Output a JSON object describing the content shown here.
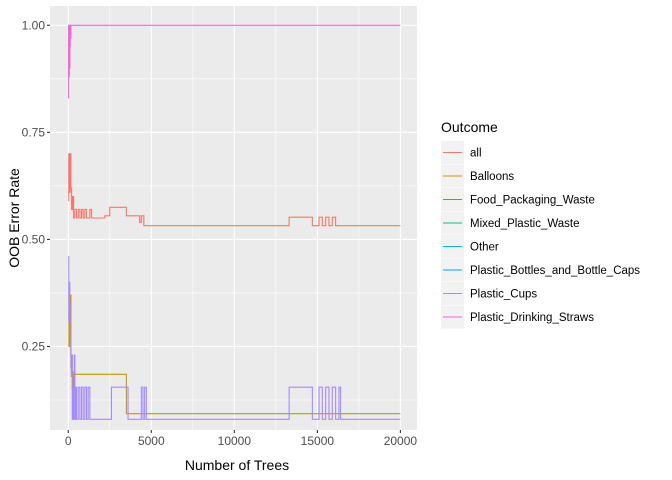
{
  "chart_data": {
    "type": "line",
    "xlabel": "Number of Trees",
    "ylabel": "OOB Error Rate",
    "xlim": [
      -1100,
      21000
    ],
    "ylim": [
      0.055,
      1.045
    ],
    "x_ticks": [
      0,
      5000,
      10000,
      15000,
      20000
    ],
    "x_tick_labels": [
      "0",
      "5000",
      "10000",
      "15000",
      "20000"
    ],
    "y_ticks": [
      0.25,
      0.5,
      0.75,
      1.0
    ],
    "y_tick_labels": [
      "0.25",
      "0.50",
      "0.75",
      "1.00"
    ],
    "grid": true,
    "legend": {
      "title": "Outcome",
      "position": "right"
    },
    "series": [
      {
        "name": "all",
        "color": "#F8766D",
        "points": [
          [
            1,
            0.59
          ],
          [
            30,
            0.7
          ],
          [
            60,
            0.64
          ],
          [
            90,
            0.61
          ],
          [
            120,
            0.7
          ],
          [
            160,
            0.62
          ],
          [
            200,
            0.57
          ],
          [
            260,
            0.6
          ],
          [
            320,
            0.55
          ],
          [
            400,
            0.57
          ],
          [
            500,
            0.55
          ],
          [
            600,
            0.57
          ],
          [
            700,
            0.55
          ],
          [
            800,
            0.57
          ],
          [
            900,
            0.55
          ],
          [
            1000,
            0.57
          ],
          [
            1100,
            0.55
          ],
          [
            1300,
            0.57
          ],
          [
            1400,
            0.55
          ],
          [
            2200,
            0.555
          ],
          [
            2500,
            0.575
          ],
          [
            3500,
            0.555
          ],
          [
            4300,
            0.54
          ],
          [
            4400,
            0.555
          ],
          [
            4550,
            0.532
          ],
          [
            5000,
            0.532
          ],
          [
            13200,
            0.532
          ],
          [
            13300,
            0.552
          ],
          [
            14700,
            0.532
          ],
          [
            15100,
            0.552
          ],
          [
            15300,
            0.532
          ],
          [
            15500,
            0.552
          ],
          [
            15700,
            0.532
          ],
          [
            15900,
            0.552
          ],
          [
            16100,
            0.532
          ],
          [
            16300,
            0.532
          ],
          [
            20000,
            0.532
          ]
        ]
      },
      {
        "name": "Balloons",
        "color": "#C49A00",
        "points": [
          [
            1,
            0.33
          ],
          [
            40,
            0.25
          ],
          [
            80,
            0.31
          ],
          [
            120,
            0.37
          ],
          [
            160,
            0.2
          ],
          [
            200,
            0.23
          ],
          [
            240,
            0.15
          ],
          [
            280,
            0.19
          ],
          [
            300,
            0.15
          ],
          [
            320,
            0.185
          ],
          [
            3500,
            0.185
          ],
          [
            3501,
            0.093
          ],
          [
            20000,
            0.093
          ]
        ]
      },
      {
        "name": "Food_Packaging_Waste",
        "color": "#53B400",
        "points": []
      },
      {
        "name": "Mixed_Plastic_Waste",
        "color": "#00C094",
        "points": []
      },
      {
        "name": "Other",
        "color": "#00B6EB",
        "points": []
      },
      {
        "name": "Plastic_Bottles_and_Bottle_Caps",
        "color": "#06A4FF",
        "points": []
      },
      {
        "name": "Plastic_Cups",
        "color": "#A58AFF",
        "points": [
          [
            1,
            0.46
          ],
          [
            30,
            0.31
          ],
          [
            60,
            0.4
          ],
          [
            90,
            0.35
          ],
          [
            120,
            0.27
          ],
          [
            150,
            0.23
          ],
          [
            180,
            0.18
          ],
          [
            210,
            0.23
          ],
          [
            240,
            0.08
          ],
          [
            270,
            0.155
          ],
          [
            300,
            0.08
          ],
          [
            330,
            0.155
          ],
          [
            360,
            0.23
          ],
          [
            400,
            0.08
          ],
          [
            450,
            0.155
          ],
          [
            500,
            0.08
          ],
          [
            600,
            0.155
          ],
          [
            700,
            0.08
          ],
          [
            800,
            0.155
          ],
          [
            900,
            0.08
          ],
          [
            1000,
            0.155
          ],
          [
            1100,
            0.08
          ],
          [
            1200,
            0.155
          ],
          [
            1300,
            0.08
          ],
          [
            2400,
            0.08
          ],
          [
            2600,
            0.155
          ],
          [
            3500,
            0.155
          ],
          [
            3600,
            0.08
          ],
          [
            4300,
            0.08
          ],
          [
            4400,
            0.155
          ],
          [
            4500,
            0.08
          ],
          [
            4600,
            0.155
          ],
          [
            4700,
            0.08
          ],
          [
            13200,
            0.08
          ],
          [
            13300,
            0.155
          ],
          [
            14600,
            0.155
          ],
          [
            14700,
            0.08
          ],
          [
            15000,
            0.08
          ],
          [
            15100,
            0.155
          ],
          [
            15300,
            0.08
          ],
          [
            15500,
            0.155
          ],
          [
            15700,
            0.08
          ],
          [
            15900,
            0.155
          ],
          [
            16100,
            0.08
          ],
          [
            16300,
            0.155
          ],
          [
            16400,
            0.08
          ],
          [
            20000,
            0.08
          ]
        ]
      },
      {
        "name": "Plastic_Drinking_Straws",
        "color": "#FB61D7",
        "points": [
          [
            1,
            0.83
          ],
          [
            20,
            1.0
          ],
          [
            40,
            0.88
          ],
          [
            60,
            1.0
          ],
          [
            80,
            0.9
          ],
          [
            100,
            0.95
          ],
          [
            120,
            1.0
          ],
          [
            140,
            0.97
          ],
          [
            160,
            1.0
          ],
          [
            20000,
            1.0
          ]
        ]
      }
    ]
  }
}
